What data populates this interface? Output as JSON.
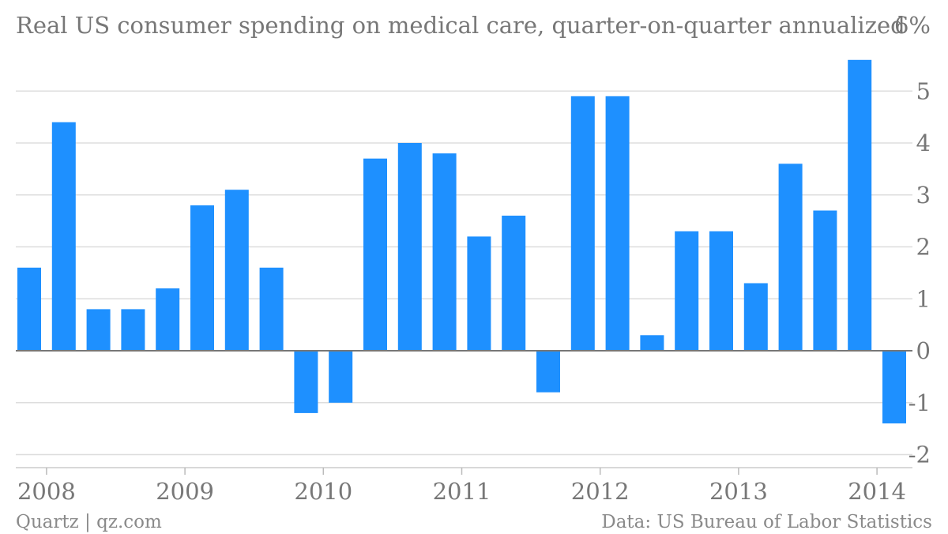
{
  "chart_data": {
    "type": "bar",
    "title": "Real US consumer spending on medical care, quarter-on-quarter annualized",
    "unit_label": "6%",
    "source_left": "Quartz | qz.com",
    "source_right": "Data: US Bureau of Labor Statistics",
    "bar_color": "#1e90ff",
    "y_ticks": [
      "5",
      "4",
      "3",
      "2",
      "1",
      "0",
      "-1",
      "-2"
    ],
    "ylim": [
      -2,
      6
    ],
    "grid": true,
    "x_tick_labels": [
      "2008",
      "2009",
      "2010",
      "2011",
      "2012",
      "2013",
      "2014"
    ],
    "categories": [
      "2008 Q1",
      "2008 Q2",
      "2008 Q3",
      "2008 Q4",
      "2009 Q1",
      "2009 Q2",
      "2009 Q3",
      "2009 Q4",
      "2010 Q1",
      "2010 Q2",
      "2010 Q3",
      "2010 Q4",
      "2011 Q1",
      "2011 Q2",
      "2011 Q3",
      "2011 Q4",
      "2012 Q1",
      "2012 Q2",
      "2012 Q3",
      "2012 Q4",
      "2013 Q1",
      "2013 Q2",
      "2013 Q3",
      "2013 Q4",
      "2014 Q1",
      "2014 Q2"
    ],
    "values": [
      1.6,
      4.4,
      0.8,
      0.8,
      1.2,
      2.8,
      3.1,
      1.6,
      -1.2,
      -1.0,
      3.7,
      4.0,
      3.8,
      2.2,
      2.6,
      -0.8,
      4.9,
      4.9,
      0.3,
      2.3,
      2.3,
      1.3,
      3.6,
      2.7,
      5.6,
      -1.4
    ]
  }
}
